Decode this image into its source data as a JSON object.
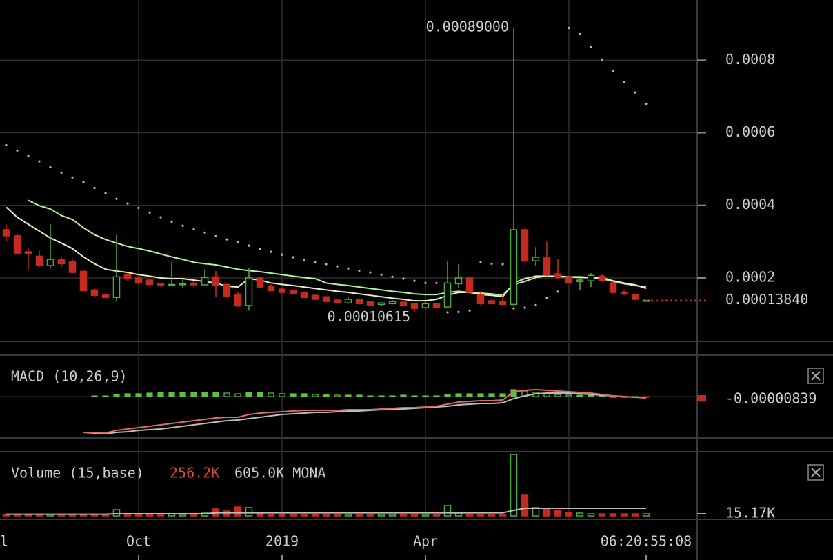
{
  "chart_data": [
    {
      "type": "candlestick",
      "categories": [
        null,
        null,
        null,
        null,
        null,
        null,
        null,
        null,
        null,
        null,
        null,
        null,
        "Oct",
        null,
        null,
        null,
        null,
        null,
        null,
        null,
        null,
        null,
        null,
        null,
        null,
        "2019",
        null,
        null,
        null,
        null,
        null,
        null,
        null,
        null,
        null,
        null,
        null,
        null,
        "Apr",
        null,
        null,
        null,
        null,
        null,
        null,
        null,
        null,
        null,
        null,
        null,
        null,
        null,
        null,
        null,
        null,
        null,
        null,
        null,
        null
      ],
      "edge_label": "l",
      "countdown": "06:20:55:08",
      "open": [
        0.000333,
        0.000316,
        0.000272,
        0.00026,
        0.000234,
        0.000251,
        0.000245,
        0.000218,
        0.000167,
        0.000154,
        0.000146,
        0.000209,
        0.0002,
        0.000194,
        0.000184,
        0.000181,
        0.000182,
        0.000186,
        0.000181,
        0.000203,
        0.000182,
        0.000154,
        0.000124,
        0.0002,
        0.000177,
        0.000169,
        0.000165,
        0.00016,
        0.000152,
        0.000148,
        0.000139,
        0.000131,
        0.000141,
        0.000135,
        0.000127,
        0.000129,
        0.000133,
        0.000129,
        0.000118,
        0.000129,
        0.00012,
        0.000184,
        0.0002,
        0.000154,
        0.000137,
        0.000135,
        0.000127,
        0.000333,
        0.000247,
        0.000257,
        0.000211,
        0.000203,
        0.00019,
        0.000192,
        0.000205,
        0.000186,
        0.00016,
        0.000154,
        0.0001384
      ],
      "high": [
        0.000348,
        0.00032,
        0.000281,
        0.000275,
        0.000348,
        0.000258,
        0.000251,
        0.000222,
        0.000171,
        0.000158,
        0.000319,
        0.000213,
        0.000205,
        0.000198,
        0.000186,
        0.000243,
        0.000196,
        0.00019,
        0.000224,
        0.000219,
        0.000186,
        0.00016,
        0.000228,
        0.000203,
        0.000182,
        0.000173,
        0.000167,
        0.000162,
        0.000154,
        0.00015,
        0.000141,
        0.000148,
        0.000143,
        0.000137,
        0.000133,
        0.000139,
        0.000135,
        0.000131,
        0.000135,
        0.000131,
        0.000247,
        0.000238,
        0.000203,
        0.000164,
        0.000141,
        0.000154,
        0.00089,
        0.000336,
        0.000285,
        0.0003,
        0.000251,
        0.000205,
        0.000198,
        0.000213,
        0.000211,
        0.00019,
        0.000167,
        0.000156,
        0.0001384
      ],
      "low": [
        0.0003,
        0.000266,
        0.000224,
        0.00023,
        0.000228,
        0.00023,
        0.000213,
        0.000163,
        0.000148,
        0.000144,
        0.000137,
        0.000192,
        0.000183,
        0.000179,
        0.000175,
        0.000177,
        0.000173,
        0.000179,
        0.000179,
        0.000148,
        0.000148,
        0.00012,
        0.00011,
        0.000171,
        0.000163,
        0.000158,
        0.000154,
        0.000144,
        0.000139,
        0.000133,
        0.000131,
        0.000129,
        0.000127,
        0.000124,
        0.000122,
        0.000127,
        0.000124,
        0.00010615,
        0.000114,
        0.000116,
        0.000118,
        0.000171,
        0.000158,
        0.000125,
        0.000127,
        0.000124,
        0.000124,
        0.000243,
        0.000234,
        0.000205,
        0.000198,
        0.000186,
        0.000165,
        0.000175,
        0.00019,
        0.000158,
        0.000152,
        0.000139,
        0.0001384
      ],
      "close": [
        0.000316,
        0.000268,
        0.000266,
        0.000234,
        0.000251,
        0.000239,
        0.000215,
        0.000165,
        0.000152,
        0.000146,
        0.000203,
        0.000198,
        0.000186,
        0.000182,
        0.000179,
        0.000182,
        0.000184,
        0.000181,
        0.000201,
        0.000179,
        0.00015,
        0.000124,
        0.0002,
        0.000175,
        0.000165,
        0.00016,
        0.000156,
        0.000146,
        0.000141,
        0.000135,
        0.000133,
        0.000141,
        0.000129,
        0.000125,
        0.000131,
        0.000135,
        0.000125,
        0.000116,
        0.000129,
        0.000118,
        0.000186,
        0.0002,
        0.00016,
        0.000129,
        0.000129,
        0.000127,
        0.000333,
        0.000247,
        0.000257,
        0.000209,
        0.000203,
        0.000188,
        0.000194,
        0.000207,
        0.000192,
        0.00016,
        0.000156,
        0.000141,
        0.0001384
      ],
      "up_color": "#4caf3a",
      "down_color": "#c62a1f",
      "overlays": [
        {
          "color": "#b9f0a2",
          "values": [
            null,
            null,
            0.000414,
            0.000399,
            0.00039,
            0.000372,
            0.000361,
            0.000338,
            0.000319,
            0.000306,
            0.000296,
            0.000287,
            0.000281,
            0.000274,
            0.000266,
            0.000258,
            0.000251,
            0.000243,
            0.000239,
            0.000236,
            0.00023,
            0.000224,
            0.00022,
            0.000217,
            0.000213,
            0.000209,
            0.000205,
            0.000201,
            0.000198,
            0.000186,
            0.000182,
            0.000179,
            0.000175,
            0.000171,
            0.000167,
            0.000163,
            0.00016,
            0.000156,
            0.000154,
            0.000154,
            0.00016,
            0.000163,
            0.00016,
            0.000158,
            0.000156,
            0.000152,
            0.000182,
            0.00019,
            0.000201,
            0.000205,
            0.000205,
            0.000203,
            0.000203,
            0.000201,
            0.000198,
            0.00019,
            0.000184,
            0.000179,
            0.000175
          ]
        },
        {
          "color": "#e6efbd",
          "values": [
            0.000395,
            0.000367,
            0.000348,
            0.000329,
            0.00031,
            0.000296,
            0.000281,
            0.000258,
            0.000239,
            0.000224,
            0.000219,
            0.000215,
            0.000209,
            0.000205,
            0.0002,
            0.000198,
            0.000198,
            0.000194,
            0.00019,
            0.000186,
            0.000177,
            0.000175,
            0.000198,
            0.000194,
            0.000186,
            0.000182,
            0.000179,
            0.000175,
            0.000171,
            0.000167,
            0.000163,
            0.00016,
            0.000156,
            0.000152,
            0.000148,
            0.000144,
            0.000141,
            0.000137,
            0.000137,
            0.000141,
            0.000152,
            0.00016,
            0.00016,
            0.000154,
            0.000152,
            0.000148,
            0.000186,
            0.000198,
            0.000205,
            0.000205,
            0.000203,
            0.000203,
            0.000201,
            0.000201,
            0.000201,
            0.000192,
            0.000186,
            0.000181,
            0.000171
          ]
        }
      ],
      "sar": {
        "color": "#bbbbbb",
        "values": [
          0.000566,
          0.000551,
          0.000536,
          0.000521,
          0.000505,
          0.00049,
          0.000477,
          0.000464,
          0.000448,
          0.000433,
          0.000418,
          0.000405,
          0.000393,
          0.00038,
          0.000367,
          0.000355,
          0.000344,
          0.000334,
          0.000325,
          0.000315,
          0.000306,
          0.000298,
          0.000289,
          0.000279,
          0.000272,
          0.000264,
          0.000257,
          0.000249,
          0.000243,
          0.000238,
          0.000232,
          0.000226,
          0.00022,
          0.000215,
          0.000209,
          0.000203,
          0.000198,
          0.000192,
          0.000186,
          0.000186,
          0.000105,
          0.000106,
          0.00011,
          0.000243,
          0.000239,
          0.000238,
          0.000116,
          0.000118,
          0.000125,
          0.000144,
          0.000162,
          0.000889,
          0.000872,
          0.000836,
          0.000802,
          0.00077,
          0.000739,
          0.000711,
          0.00068
        ]
      },
      "high_label": {
        "value": 0.00089,
        "label": "0.00089000"
      },
      "low_label_index": 37,
      "last_label": {
        "value": 0.0001384,
        "label": "0.00013840"
      },
      "ylim": [
        2.5e-05,
        0.000966
      ],
      "yticks": [
        0.0002,
        0.0004,
        0.0006,
        0.0008
      ],
      "grid": true
    },
    {
      "type": "macd",
      "title": "MACD (10,26,9)",
      "macd": {
        "color": "#e06a6a",
        "values": [
          null,
          null,
          null,
          null,
          null,
          null,
          null,
          -0.000208,
          -0.000208,
          -0.000212,
          -0.000196,
          -0.000188,
          -0.00018,
          -0.000172,
          -0.000164,
          -0.000156,
          -0.000148,
          -0.00014,
          -0.000132,
          -0.000124,
          -0.00012,
          -0.00012,
          -0.000104,
          -9.6e-05,
          -9.2e-05,
          -8.8e-05,
          -8.4e-05,
          -8e-05,
          -8e-05,
          -8e-05,
          -8e-05,
          -7.6e-05,
          -7.6e-05,
          -7.6e-05,
          -7.2e-05,
          -6.8e-05,
          -6.4e-05,
          -6.4e-05,
          -6e-05,
          -5.6e-05,
          -4.4e-05,
          -3.2e-05,
          -2.8e-05,
          -2.4e-05,
          -2.4e-05,
          -2e-05,
          2.8e-05,
          3.6e-05,
          4e-05,
          3.6e-05,
          3.2e-05,
          2.8e-05,
          2.4e-05,
          2e-05,
          1.2e-05,
          4e-06,
          0,
          -4e-06,
          -8.39e-06
        ]
      },
      "signal": {
        "color": "#bbbbbb",
        "values": [
          null,
          null,
          null,
          null,
          null,
          null,
          null,
          -0.000208,
          -0.000212,
          -0.000216,
          -0.000208,
          -0.000204,
          -0.000196,
          -0.000192,
          -0.000188,
          -0.00018,
          -0.000172,
          -0.000164,
          -0.000156,
          -0.000148,
          -0.00014,
          -0.000136,
          -0.000128,
          -0.00012,
          -0.000112,
          -0.000104,
          -0.0001,
          -9.6e-05,
          -9.2e-05,
          -9.2e-05,
          -8.8e-05,
          -8.4e-05,
          -8.4e-05,
          -8e-05,
          -7.6e-05,
          -7.2e-05,
          -7.2e-05,
          -6.8e-05,
          -6.4e-05,
          -6e-05,
          -5.6e-05,
          -4.8e-05,
          -4.4e-05,
          -4e-05,
          -4e-05,
          -3.6e-05,
          -1.2e-05,
          4e-06,
          1.6e-05,
          2e-05,
          2e-05,
          2e-05,
          1.6e-05,
          1.2e-05,
          8e-06,
          4e-06,
          0,
          -4e-06,
          -4e-06
        ]
      },
      "histogram": {
        "up_color": "#5fc23f",
        "down_color": "#c62a1f",
        "values": [
          null,
          null,
          null,
          null,
          null,
          null,
          null,
          null,
          4e-06,
          4e-06,
          1.2e-05,
          1.6e-05,
          1.6e-05,
          2e-05,
          2.4e-05,
          2.4e-05,
          2.4e-05,
          2.4e-05,
          2.4e-05,
          2.4e-05,
          2e-05,
          1.6e-05,
          2.4e-05,
          2.4e-05,
          2e-05,
          1.6e-05,
          1.6e-05,
          1.6e-05,
          1.2e-05,
          1.2e-05,
          8e-06,
          8e-06,
          8e-06,
          4e-06,
          4e-06,
          4e-06,
          8e-06,
          4e-06,
          4e-06,
          4e-06,
          1.2e-05,
          1.6e-05,
          1.6e-05,
          1.6e-05,
          1.6e-05,
          1.6e-05,
          4e-05,
          3.2e-05,
          2.4e-05,
          1.6e-05,
          1.2e-05,
          8e-06,
          8e-06,
          8e-06,
          4e-06,
          0,
          0,
          0,
          -4.39e-06
        ]
      },
      "ylim": [
        -0.00024,
        0.00024
      ]
    },
    {
      "type": "volume",
      "title": "Volume (15,base)",
      "header_values": [
        {
          "text": "256.2K",
          "color": "#e0463b"
        },
        {
          "text": "605.0K MONA",
          "color": "#cccccc"
        }
      ],
      "values": [
        10000,
        10000,
        10000,
        10000,
        10000,
        10000,
        10000,
        10000,
        10000,
        10000,
        45000,
        10000,
        10000,
        10000,
        10000,
        15000,
        10000,
        10000,
        20000,
        50000,
        35000,
        65000,
        60000,
        15000,
        10000,
        10000,
        10000,
        10000,
        10000,
        10000,
        10000,
        10000,
        10000,
        10000,
        10000,
        10000,
        10000,
        10000,
        10000,
        10000,
        75000,
        20000,
        10000,
        10000,
        10000,
        10000,
        445000,
        150000,
        60000,
        55000,
        40000,
        25000,
        20000,
        15000,
        15000,
        15000,
        15000,
        15000,
        15170
      ],
      "ma": {
        "color": "#bbbbbb",
        "values": [
          12000,
          12000,
          12000,
          12000,
          12000,
          12000,
          12000,
          12000,
          12000,
          12000,
          15000,
          15000,
          15000,
          15000,
          15000,
          15000,
          15000,
          15000,
          15000,
          22000,
          22000,
          22000,
          22000,
          22000,
          22000,
          22000,
          22000,
          22000,
          22000,
          22000,
          22000,
          22000,
          22000,
          22000,
          22000,
          22000,
          22000,
          22000,
          22000,
          22000,
          22000,
          22000,
          22000,
          22000,
          22000,
          22000,
          40000,
          55000,
          55000,
          55000,
          55000,
          55000,
          55000,
          55000,
          55000,
          55000,
          55000,
          55000,
          55000
        ]
      },
      "last_label": {
        "value": 15170,
        "label": "15.17K"
      },
      "ylim": [
        0,
        480000
      ]
    }
  ]
}
